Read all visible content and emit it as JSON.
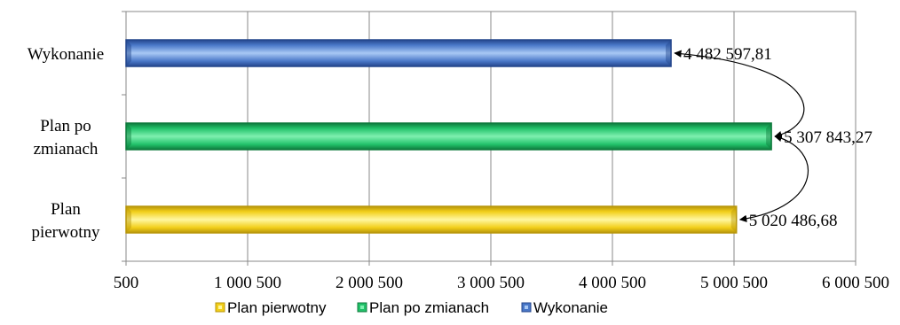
{
  "chart_data": {
    "type": "bar",
    "orientation": "horizontal",
    "categories": [
      [
        "Plan",
        "pierwotny"
      ],
      [
        "Plan po",
        "zmianach"
      ],
      [
        "Wykonanie"
      ]
    ],
    "series": [
      {
        "name": "Plan pierwotny",
        "category_index": 0,
        "value": 5020486.68,
        "label": "5 020 486,68",
        "color": "#F2CF1A",
        "light": "#FFF7A0",
        "dark": "#B8960A"
      },
      {
        "name": "Plan po zmianach",
        "category_index": 1,
        "value": 5307843.27,
        "label": "5 307 843,27",
        "color": "#22C26A",
        "light": "#7FF0B0",
        "dark": "#0E7A3C"
      },
      {
        "name": "Wykonanie",
        "category_index": 2,
        "value": 4482597.81,
        "label": "4 482 597,81",
        "color": "#4A78C8",
        "light": "#A8C8F4",
        "dark": "#24468C"
      }
    ],
    "xlim": [
      500,
      6000500
    ],
    "x_ticks": [
      500,
      1000500,
      2000500,
      3000500,
      4000500,
      5000500,
      6000500
    ],
    "x_tick_labels": [
      "500",
      "1 000 500",
      "2 000 500",
      "3 000 500",
      "4 000 500",
      "5 000 500",
      "6 000 500"
    ],
    "grid": true,
    "legend": {
      "position": "bottom",
      "order": [
        "Plan pierwotny",
        "Plan po zmianach",
        "Wykonanie"
      ]
    },
    "annotations": [
      {
        "type": "double-arrow-curve",
        "from": "Wykonanie",
        "to": "Plan po zmianach"
      },
      {
        "type": "double-arrow-curve",
        "from": "Plan po zmianach",
        "to": "Plan pierwotny"
      }
    ]
  }
}
